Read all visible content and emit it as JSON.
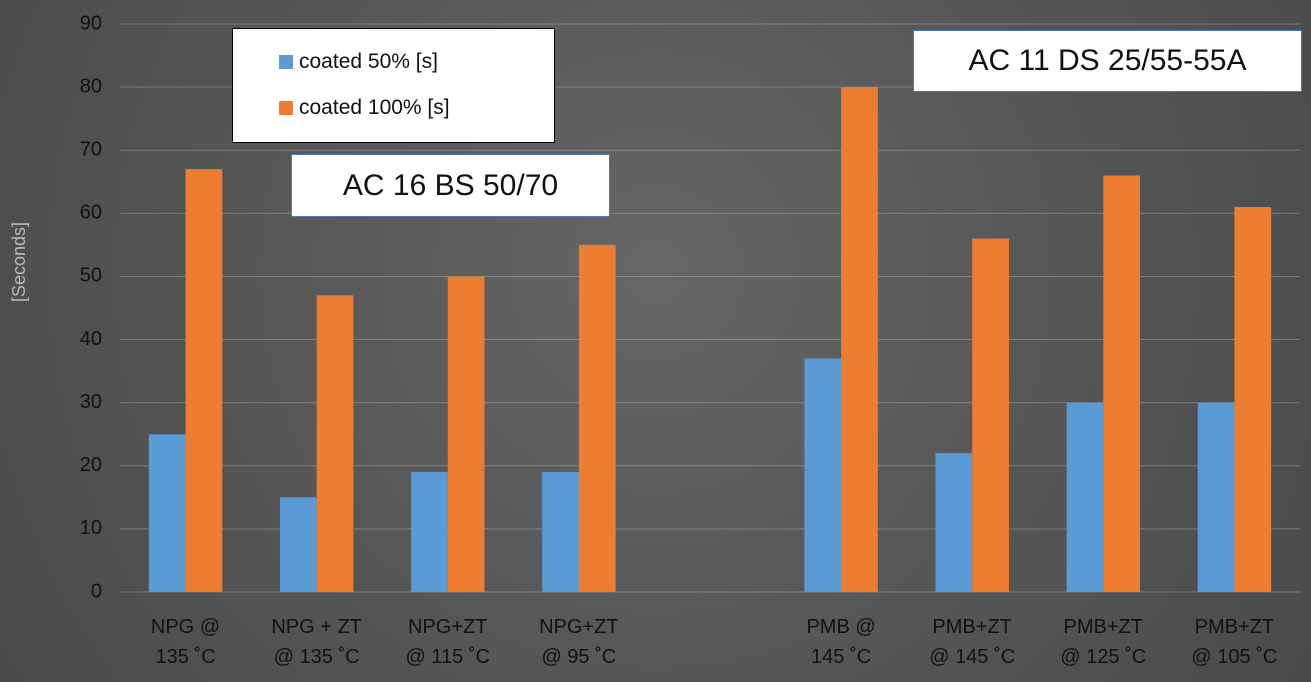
{
  "chart_data": {
    "type": "bar",
    "y_label": "[Seconds]",
    "annotations": [
      "AC 16 BS 50/70",
      "AC 11 DS 25/55-55A"
    ],
    "categories": [
      "NPG @\n135 ˚C",
      "NPG + ZT\n@ 135 ˚C",
      "NPG+ZT\n@ 115 ˚C",
      "NPG+ZT\n@ 95 ˚C",
      null,
      "PMB  @\n145 ˚C",
      "PMB+ZT\n@ 145 ˚C",
      "PMB+ZT\n@ 125 ˚C",
      "PMB+ZT\n@ 105 ˚C"
    ],
    "series": [
      {
        "name": "coated 50% [s]",
        "color": "#5b9bd5",
        "values": [
          25,
          15,
          19,
          19,
          null,
          37,
          22,
          30,
          30
        ]
      },
      {
        "name": "coated 100% [s]",
        "color": "#ed7d31",
        "values": [
          67,
          47,
          50,
          55,
          null,
          80,
          56,
          66,
          61
        ]
      }
    ],
    "ylim": [
      0,
      90
    ],
    "yticks": [
      0,
      10,
      20,
      30,
      40,
      50,
      60,
      70,
      80,
      90
    ],
    "grid": true,
    "legend": "top-left"
  }
}
